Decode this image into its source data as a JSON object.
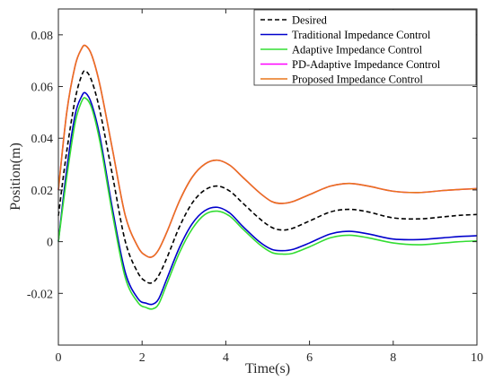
{
  "chart_data": {
    "type": "line",
    "title": "",
    "xlabel": "Time(s)",
    "ylabel": "Position(m)",
    "xlim": [
      0,
      10
    ],
    "ylim": [
      -0.04,
      0.09
    ],
    "xticks": [
      0,
      2,
      4,
      6,
      8,
      10
    ],
    "xtick_labels": [
      "0",
      "2",
      "4",
      "6",
      "8",
      "10"
    ],
    "yticks": [
      -0.02,
      0,
      0.02,
      0.04,
      0.06,
      0.08
    ],
    "ytick_labels": [
      "-0.02",
      "0",
      "0.02",
      "0.04",
      "0.06",
      "0.08"
    ],
    "grid": false,
    "legend_position": "top-right",
    "series": [
      {
        "name": "Desired",
        "color": "#000000",
        "dash": "dashed",
        "x": [
          0,
          0.2,
          0.4,
          0.55,
          0.65,
          0.8,
          1.0,
          1.3,
          1.6,
          1.9,
          2.1,
          2.25,
          2.4,
          2.6,
          2.9,
          3.2,
          3.5,
          3.8,
          4.1,
          4.4,
          4.8,
          5.1,
          5.35,
          5.6,
          6.0,
          6.5,
          6.95,
          7.4,
          8.0,
          8.6,
          9.2,
          9.6,
          10.0
        ],
        "y": [
          0.01,
          0.035,
          0.055,
          0.064,
          0.066,
          0.062,
          0.05,
          0.025,
          0.0,
          -0.012,
          -0.0155,
          -0.0158,
          -0.013,
          -0.006,
          0.006,
          0.015,
          0.02,
          0.0215,
          0.0195,
          0.015,
          0.009,
          0.0055,
          0.0045,
          0.0052,
          0.008,
          0.0115,
          0.0125,
          0.0115,
          0.0092,
          0.0088,
          0.0096,
          0.0102,
          0.0105
        ]
      },
      {
        "name": "Traditional Impedance Control",
        "color": "#0000cc",
        "dash": "solid",
        "x": [
          0,
          0.2,
          0.4,
          0.55,
          0.65,
          0.8,
          1.0,
          1.3,
          1.6,
          1.9,
          2.1,
          2.25,
          2.4,
          2.6,
          2.9,
          3.2,
          3.5,
          3.8,
          4.1,
          4.4,
          4.8,
          5.1,
          5.35,
          5.6,
          6.0,
          6.5,
          6.95,
          7.4,
          8.0,
          8.6,
          9.2,
          9.6,
          10.0
        ],
        "y": [
          0.0,
          0.028,
          0.049,
          0.056,
          0.0575,
          0.053,
          0.04,
          0.012,
          -0.012,
          -0.022,
          -0.0238,
          -0.0242,
          -0.022,
          -0.014,
          -0.002,
          0.007,
          0.012,
          0.0133,
          0.011,
          0.006,
          0.0,
          -0.003,
          -0.0035,
          -0.003,
          -0.0005,
          0.003,
          0.004,
          0.003,
          0.001,
          0.0008,
          0.0015,
          0.002,
          0.0023
        ]
      },
      {
        "name": "Adaptive Impedance Control",
        "color": "#33dd33",
        "dash": "solid",
        "x": [
          0,
          0.2,
          0.4,
          0.55,
          0.65,
          0.8,
          1.0,
          1.3,
          1.6,
          1.9,
          2.1,
          2.25,
          2.4,
          2.6,
          2.9,
          3.2,
          3.5,
          3.8,
          4.1,
          4.4,
          4.8,
          5.1,
          5.35,
          5.6,
          6.0,
          6.5,
          6.95,
          7.4,
          8.0,
          8.6,
          9.2,
          9.6,
          10.0
        ],
        "y": [
          0.0,
          0.025,
          0.046,
          0.054,
          0.0555,
          0.0515,
          0.038,
          0.01,
          -0.014,
          -0.0235,
          -0.0255,
          -0.026,
          -0.024,
          -0.016,
          -0.004,
          0.005,
          0.0105,
          0.0118,
          0.0098,
          0.005,
          -0.001,
          -0.0042,
          -0.0048,
          -0.0045,
          -0.002,
          0.0015,
          0.0025,
          0.0015,
          -0.0005,
          -0.0012,
          -0.0005,
          0.0,
          0.0003
        ]
      },
      {
        "name": "PD-Adaptive Impedance Control",
        "color": "#ff00ff",
        "dash": "solid",
        "x": [
          0,
          0.2,
          0.4,
          0.55,
          0.65,
          0.8,
          1.0,
          1.3,
          1.6,
          1.9,
          2.1,
          2.25,
          2.4,
          2.6,
          2.9,
          3.2,
          3.5,
          3.8,
          4.1,
          4.4,
          4.8,
          5.1,
          5.35,
          5.6,
          6.0,
          6.5,
          6.95,
          7.4,
          8.0,
          8.6,
          9.2,
          9.6,
          10.0
        ],
        "y": [
          0.02,
          0.05,
          0.068,
          0.0745,
          0.0758,
          0.072,
          0.06,
          0.035,
          0.01,
          -0.002,
          -0.0055,
          -0.0058,
          -0.003,
          0.004,
          0.016,
          0.025,
          0.03,
          0.0315,
          0.0295,
          0.025,
          0.019,
          0.0155,
          0.0148,
          0.0155,
          0.0182,
          0.0215,
          0.0225,
          0.0215,
          0.0195,
          0.019,
          0.0198,
          0.0202,
          0.0205
        ]
      },
      {
        "name": "Proposed Impedance Control",
        "color": "#e8761a",
        "dash": "solid",
        "x": [
          0,
          0.2,
          0.4,
          0.55,
          0.65,
          0.8,
          1.0,
          1.3,
          1.6,
          1.9,
          2.1,
          2.25,
          2.4,
          2.6,
          2.9,
          3.2,
          3.5,
          3.8,
          4.1,
          4.4,
          4.8,
          5.1,
          5.35,
          5.6,
          6.0,
          6.5,
          6.95,
          7.4,
          8.0,
          8.6,
          9.2,
          9.6,
          10.0
        ],
        "y": [
          0.02,
          0.05,
          0.068,
          0.0745,
          0.0758,
          0.072,
          0.06,
          0.035,
          0.01,
          -0.002,
          -0.0055,
          -0.0058,
          -0.003,
          0.004,
          0.016,
          0.025,
          0.03,
          0.0315,
          0.0295,
          0.025,
          0.019,
          0.0155,
          0.0148,
          0.0155,
          0.0182,
          0.0215,
          0.0225,
          0.0215,
          0.0195,
          0.019,
          0.0198,
          0.0202,
          0.0205
        ]
      }
    ]
  }
}
